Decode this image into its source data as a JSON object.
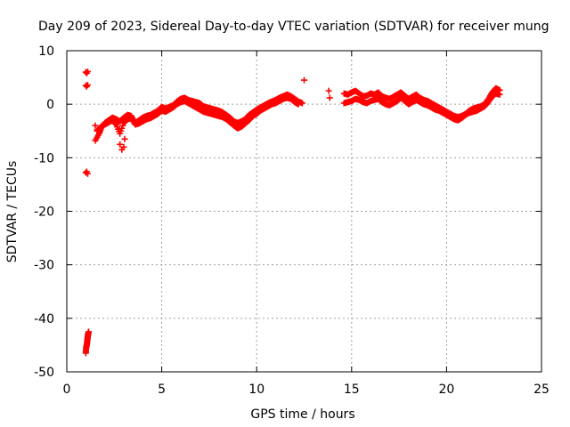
{
  "chart_data": {
    "type": "scatter",
    "title": "Day 209 of 2023, Sidereal Day-to-day VTEC variation (SDTVAR) for receiver mung",
    "xlabel": "GPS time / hours",
    "ylabel": "SDTVAR / TECUs",
    "xlim": [
      0,
      25
    ],
    "ylim": [
      -50,
      10
    ],
    "xticks": [
      0,
      5,
      10,
      15,
      20,
      25
    ],
    "yticks": [
      -50,
      -40,
      -30,
      -20,
      -10,
      0,
      10
    ],
    "xtick_labels": [
      "0",
      "5",
      "10",
      "15",
      "20",
      "25"
    ],
    "ytick_labels": [
      "-50",
      "-40",
      "-30",
      "-20",
      "-10",
      "0",
      "10"
    ],
    "grid": true,
    "marker": "+",
    "series": [
      {
        "name": "SDTVAR",
        "color": "#ff0000",
        "segments": [
          {
            "x": [
              1.0,
              1.02,
              1.05,
              1.08,
              1.1,
              1.12,
              1.15
            ],
            "y": [
              -46.5,
              -45.5,
              -45.0,
              -44.2,
              -43.5,
              -43.0,
              -42.5
            ]
          },
          {
            "x": [
              1.0,
              1.05,
              1.1
            ],
            "y": [
              -12.8,
              -12.6,
              -13.0
            ]
          },
          {
            "x": [
              1.0,
              1.05,
              1.1
            ],
            "y": [
              3.5,
              3.3,
              3.6
            ]
          },
          {
            "x": [
              1.0,
              1.05,
              1.1
            ],
            "y": [
              6.0,
              5.8,
              6.1
            ]
          },
          {
            "x": [
              1.5,
              1.7,
              1.8,
              2.0,
              2.2,
              2.4,
              2.6,
              2.8,
              3.0,
              3.2,
              3.4,
              3.6,
              3.8,
              4.0,
              4.2,
              4.4,
              4.6,
              4.8,
              5.0,
              5.2,
              5.4,
              5.6,
              5.8,
              6.0,
              6.2,
              6.4,
              6.6,
              6.8,
              7.0,
              7.2,
              7.4,
              7.6,
              7.8,
              8.0,
              8.2,
              8.4,
              8.6,
              8.8,
              9.0,
              9.2,
              9.4,
              9.6,
              9.8,
              10.0,
              10.2,
              10.4,
              10.6,
              10.8,
              11.0,
              11.2,
              11.4,
              11.6,
              11.8,
              12.0,
              12.2,
              12.4
            ],
            "y": [
              -6.8,
              -5.5,
              -4.5,
              -3.5,
              -3.0,
              -2.5,
              -2.8,
              -3.2,
              -2.5,
              -2.0,
              -2.2,
              -3.5,
              -3.0,
              -2.5,
              -2.2,
              -2.0,
              -1.6,
              -1.2,
              -0.5,
              -0.8,
              -0.5,
              -0.2,
              0.5,
              1.0,
              1.2,
              0.8,
              0.6,
              0.4,
              0.2,
              -0.4,
              -0.6,
              -0.8,
              -1.0,
              -1.2,
              -1.5,
              -2.0,
              -2.5,
              -3.2,
              -3.5,
              -3.2,
              -2.8,
              -2.0,
              -1.5,
              -1.0,
              -0.6,
              -0.2,
              0.2,
              0.5,
              0.8,
              1.2,
              1.5,
              1.8,
              1.5,
              1.0,
              0.5,
              0.2
            ]
          },
          {
            "x": [
              1.6,
              1.8,
              2.0,
              2.2,
              2.4,
              2.6,
              2.8,
              3.0,
              3.2,
              3.4,
              3.6,
              3.8,
              4.0,
              4.2,
              4.4,
              4.6,
              4.8,
              5.0,
              5.2,
              5.4,
              5.6,
              5.8,
              6.0,
              6.2,
              6.4,
              6.6,
              6.8,
              7.0,
              7.2,
              7.4,
              7.6,
              7.8,
              8.0,
              8.2,
              8.4,
              8.6,
              8.8,
              9.0,
              9.2,
              9.4,
              9.6,
              9.8,
              10.0,
              10.2,
              10.4,
              10.6,
              10.8,
              11.0,
              11.2,
              11.4,
              11.6,
              11.8,
              12.0,
              12.2
            ],
            "y": [
              -5.0,
              -4.2,
              -3.8,
              -3.4,
              -3.0,
              -3.8,
              -5.5,
              -3.5,
              -2.8,
              -2.6,
              -3.8,
              -3.6,
              -3.2,
              -2.8,
              -2.6,
              -2.2,
              -1.8,
              -1.2,
              -1.4,
              -1.0,
              -0.6,
              0.0,
              0.4,
              0.6,
              0.2,
              -0.2,
              -0.6,
              -1.0,
              -1.4,
              -1.6,
              -1.8,
              -2.0,
              -2.2,
              -2.4,
              -2.8,
              -3.4,
              -4.0,
              -4.5,
              -4.2,
              -3.6,
              -3.0,
              -2.2,
              -1.8,
              -1.2,
              -0.8,
              -0.4,
              0.0,
              0.2,
              0.6,
              1.0,
              1.2,
              1.0,
              0.4,
              0.0
            ]
          },
          {
            "x": [
              2.8,
              2.9,
              3.0,
              3.05
            ],
            "y": [
              -7.5,
              -8.5,
              -8.0,
              -6.5
            ]
          },
          {
            "x": [
              1.5,
              1.6
            ],
            "y": [
              -4.0,
              -4.8
            ]
          },
          {
            "x": [
              12.5
            ],
            "y": [
              4.5
            ]
          },
          {
            "x": [
              13.8,
              13.85
            ],
            "y": [
              2.5,
              1.2
            ]
          },
          {
            "x": [
              14.6,
              14.8,
              15.0,
              15.2,
              15.4,
              15.6,
              15.8,
              16.0,
              16.2,
              16.4,
              16.6,
              16.8,
              17.0,
              17.2,
              17.4,
              17.6,
              17.8,
              18.0,
              18.2,
              18.4,
              18.6,
              18.8,
              19.0,
              19.2,
              19.4,
              19.6,
              19.8,
              20.0,
              20.2,
              20.4,
              20.6,
              20.8,
              21.0,
              21.2,
              21.4,
              21.6,
              21.8,
              22.0,
              22.2,
              22.4,
              22.6,
              22.8
            ],
            "y": [
              2.0,
              1.8,
              2.2,
              2.5,
              2.0,
              1.5,
              1.6,
              2.0,
              1.8,
              2.2,
              1.5,
              1.2,
              1.0,
              1.4,
              1.8,
              2.2,
              1.6,
              1.0,
              1.4,
              1.8,
              1.2,
              0.8,
              0.6,
              0.2,
              -0.2,
              -0.6,
              -1.0,
              -1.4,
              -1.8,
              -2.2,
              -2.4,
              -2.2,
              -1.8,
              -1.2,
              -0.8,
              -0.6,
              -0.4,
              0.0,
              1.0,
              2.2,
              3.0,
              2.6
            ]
          },
          {
            "x": [
              14.6,
              14.8,
              15.0,
              15.2,
              15.4,
              15.6,
              15.8,
              16.0,
              16.2,
              16.4,
              16.6,
              16.8,
              17.0,
              17.2,
              17.4,
              17.6,
              17.8,
              18.0,
              18.2,
              18.4,
              18.6,
              18.8,
              19.0,
              19.2,
              19.4,
              19.6,
              19.8,
              20.0,
              20.2,
              20.4,
              20.6,
              20.8,
              21.0,
              21.2,
              21.4,
              21.6,
              21.8,
              22.0,
              22.2,
              22.4,
              22.6,
              22.8
            ],
            "y": [
              0.2,
              0.4,
              0.6,
              1.0,
              0.8,
              0.4,
              0.2,
              0.6,
              0.8,
              1.0,
              0.4,
              0.0,
              -0.2,
              0.2,
              0.6,
              1.2,
              0.6,
              0.0,
              0.4,
              0.8,
              0.4,
              0.0,
              -0.2,
              -0.6,
              -1.0,
              -1.2,
              -1.6,
              -2.0,
              -2.4,
              -2.8,
              -3.0,
              -2.6,
              -2.0,
              -1.6,
              -1.4,
              -1.2,
              -0.8,
              -0.4,
              0.4,
              1.4,
              2.0,
              1.8
            ]
          }
        ]
      }
    ]
  }
}
